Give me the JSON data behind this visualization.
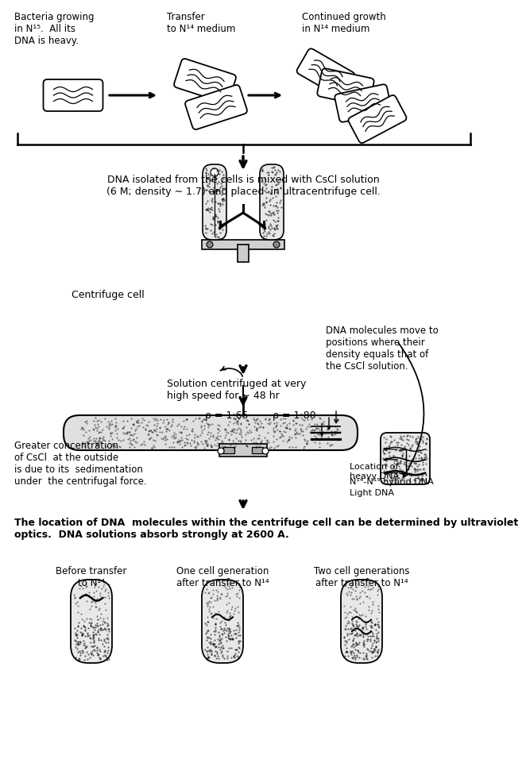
{
  "bg_color": "#ffffff",
  "title1": "Bacteria growing\nin N¹⁵.  All its\nDNA is heavy.",
  "title2": "Transfer\nto N¹⁴ medium",
  "title3": "Continued growth\nin N¹⁴ medium",
  "label_centrifuge": "Centrifuge cell",
  "label_dna_move": "DNA molecules move to\npositions where their\ndensity equals that of\nthe CsCl solution.",
  "label_csci_text": "DNA isolated from the cells is mixed with CsCl solution\n(6 M; density ∼ 1.7) and placed  in ultracentrifuge cell.",
  "label_centrifuged": "Solution centrifuged at very\nhigh speed for ∼ 48 hr",
  "label_greater": "Greater concentration\nof CsCl  at the outside\nis due to its  sedimentation\nunder  the centrifugal force.",
  "label_rho1": "ρ = 1:65",
  "label_rho2": "ρ = 1:80",
  "label_location_heavy": "Location of\nheavy DNA",
  "label_hybrid": "N¹⁴-N¹⁵ hybrid DNA",
  "label_light": "Light DNA",
  "label_uv": "The location of DNA  molecules within the centrifuge cell can be determined by ultraviolet\noptics.  DNA solutions absorb strongly at 2600 A.",
  "label_before": "Before transfer\nto N¹⁴",
  "label_one_gen": "One cell generation\nafter transfer to N¹⁴",
  "label_two_gen": "Two cell generations\nafter transfer to N¹⁴"
}
